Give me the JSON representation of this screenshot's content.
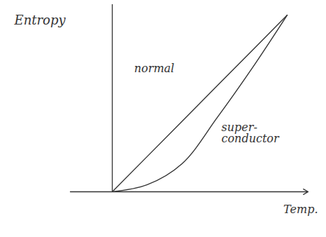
{
  "chart_data": {
    "type": "line",
    "xlabel": "Temp.",
    "ylabel": "Entropy",
    "x": [
      0,
      0.2,
      0.4,
      0.6,
      0.8,
      1
    ],
    "series": [
      {
        "name": "normal",
        "color": "#333333",
        "values": [
          0,
          0.2,
          0.4,
          0.6,
          0.8,
          1
        ]
      },
      {
        "name": "super-\nconductor",
        "color": "#333333",
        "values": [
          0,
          0.04,
          0.16,
          0.42,
          0.7,
          1
        ]
      }
    ],
    "xlim": [
      -0.24,
      1.12
    ],
    "ylim": [
      0,
      1.06
    ],
    "xticks": [],
    "yticks": [],
    "tick_labels": false
  }
}
